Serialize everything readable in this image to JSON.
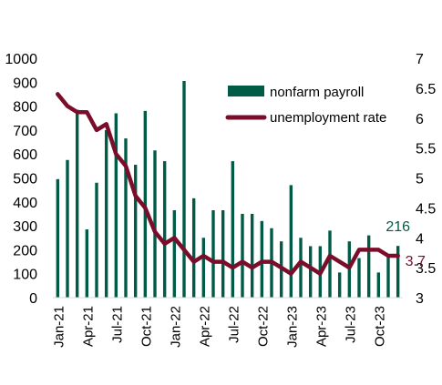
{
  "chart_data": {
    "type": "bar+line",
    "title": "",
    "categories": [
      "Jan-21",
      "Feb-21",
      "Mar-21",
      "Apr-21",
      "May-21",
      "Jun-21",
      "Jul-21",
      "Aug-21",
      "Sep-21",
      "Oct-21",
      "Nov-21",
      "Dec-21",
      "Jan-22",
      "Feb-22",
      "Mar-22",
      "Apr-22",
      "May-22",
      "Jun-22",
      "Jul-22",
      "Aug-22",
      "Sep-22",
      "Oct-22",
      "Nov-22",
      "Dec-22",
      "Jan-23",
      "Feb-23",
      "Mar-23",
      "Apr-23",
      "May-23",
      "Jun-23",
      "Jul-23",
      "Aug-23",
      "Sep-23",
      "Oct-23",
      "Nov-23",
      "Dec-23"
    ],
    "x_tick_labels": [
      "Jan-21",
      "Apr-21",
      "Jul-21",
      "Oct-21",
      "Jan-22",
      "Apr-22",
      "Jul-22",
      "Oct-22",
      "Jan-23",
      "Apr-23",
      "Jul-23",
      "Oct-23"
    ],
    "series": [
      {
        "name": "nonfarm payroll",
        "type": "bar",
        "axis": "left",
        "color": "#005C46",
        "values": [
          495,
          575,
          785,
          285,
          480,
          700,
          770,
          665,
          555,
          780,
          615,
          570,
          365,
          905,
          415,
          250,
          365,
          365,
          570,
          350,
          350,
          320,
          290,
          235,
          470,
          250,
          215,
          215,
          280,
          105,
          235,
          165,
          260,
          105,
          175,
          216
        ]
      },
      {
        "name": "unemployment rate",
        "type": "line",
        "axis": "right",
        "color": "#7A0E2A",
        "values": [
          6.4,
          6.2,
          6.1,
          6.1,
          5.8,
          5.9,
          5.4,
          5.2,
          4.7,
          4.5,
          4.1,
          3.9,
          4.0,
          3.8,
          3.6,
          3.7,
          3.6,
          3.6,
          3.5,
          3.6,
          3.5,
          3.6,
          3.6,
          3.5,
          3.4,
          3.6,
          3.5,
          3.4,
          3.7,
          3.6,
          3.5,
          3.8,
          3.8,
          3.8,
          3.7,
          3.7
        ]
      }
    ],
    "y_left": {
      "min": 0,
      "max": 1000,
      "ticks": [
        "0",
        "100",
        "200",
        "300",
        "400",
        "500",
        "600",
        "700",
        "800",
        "900",
        "1000"
      ]
    },
    "y_right": {
      "min": 3,
      "max": 7,
      "ticks": [
        "3",
        "3.5",
        "4",
        "4.5",
        "5",
        "5.5",
        "6",
        "6.5",
        "7"
      ]
    },
    "annotations": [
      {
        "text": "216",
        "series": "nonfarm payroll",
        "color": "#005C46"
      },
      {
        "text": "3.7",
        "series": "unemployment rate",
        "color": "#7A0E2A"
      }
    ],
    "legend": {
      "position": "top-right"
    },
    "grid": false
  }
}
